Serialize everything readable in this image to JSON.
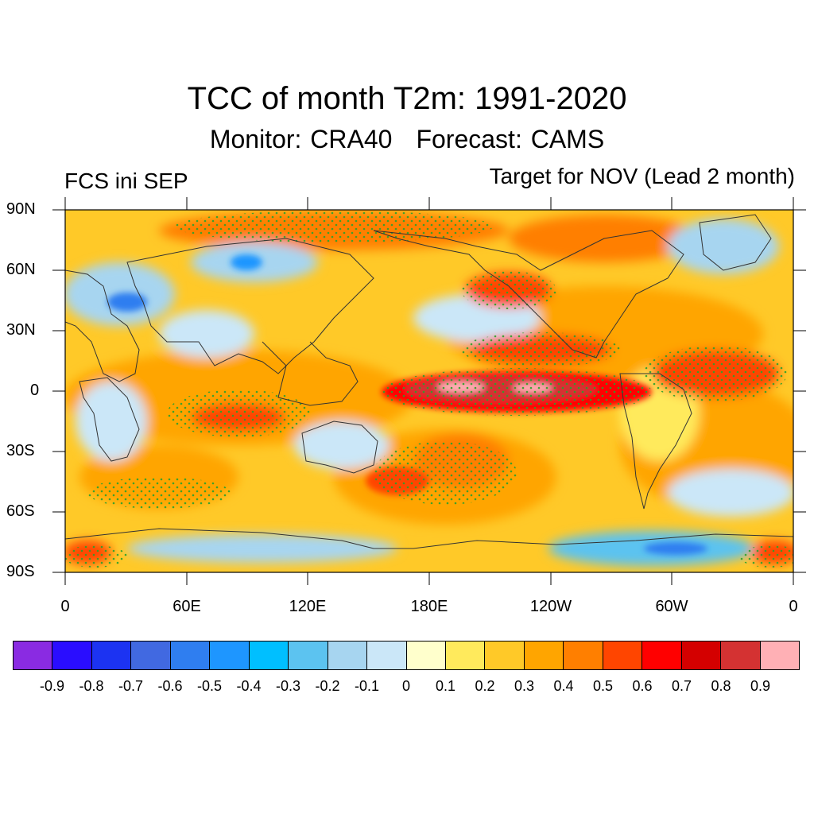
{
  "title": "TCC of month T2m: 1991-2020",
  "subtitle": {
    "monitor": "Monitor: CRA40",
    "forecast": "Forecast: CAMS"
  },
  "left_label": "FCS ini SEP",
  "right_label": "Target for NOV (Lead 2 month)",
  "map": {
    "projection": "cylindrical equidistant",
    "lon_range": [
      0,
      360
    ],
    "lat_range": [
      -90,
      90
    ],
    "lat_labels": [
      "90N",
      "60N",
      "30N",
      "0",
      "30S",
      "60S",
      "90S"
    ],
    "lon_labels": [
      "0",
      "60E",
      "120E",
      "180E",
      "120W",
      "60W",
      "0"
    ],
    "stippling": "significant correlation (dotted)"
  },
  "colorbar": {
    "colors": [
      "#8a2be2",
      "#2a0dff",
      "#1c33f2",
      "#4169e1",
      "#2f7ef0",
      "#1e96ff",
      "#00bfff",
      "#5cc3f0",
      "#a7d5f0",
      "#cbe7f8",
      "#ffffcc",
      "#ffea5c",
      "#ffc928",
      "#ffa500",
      "#ff7f00",
      "#ff4500",
      "#ff0000",
      "#d40000",
      "#d43232",
      "#ffb0b5"
    ],
    "labels": [
      "-0.9",
      "-0.8",
      "-0.7",
      "-0.6",
      "-0.5",
      "-0.4",
      "-0.3",
      "-0.2",
      "-0.1",
      "0",
      "0.1",
      "0.2",
      "0.3",
      "0.4",
      "0.5",
      "0.6",
      "0.7",
      "0.8",
      "0.9"
    ]
  }
}
